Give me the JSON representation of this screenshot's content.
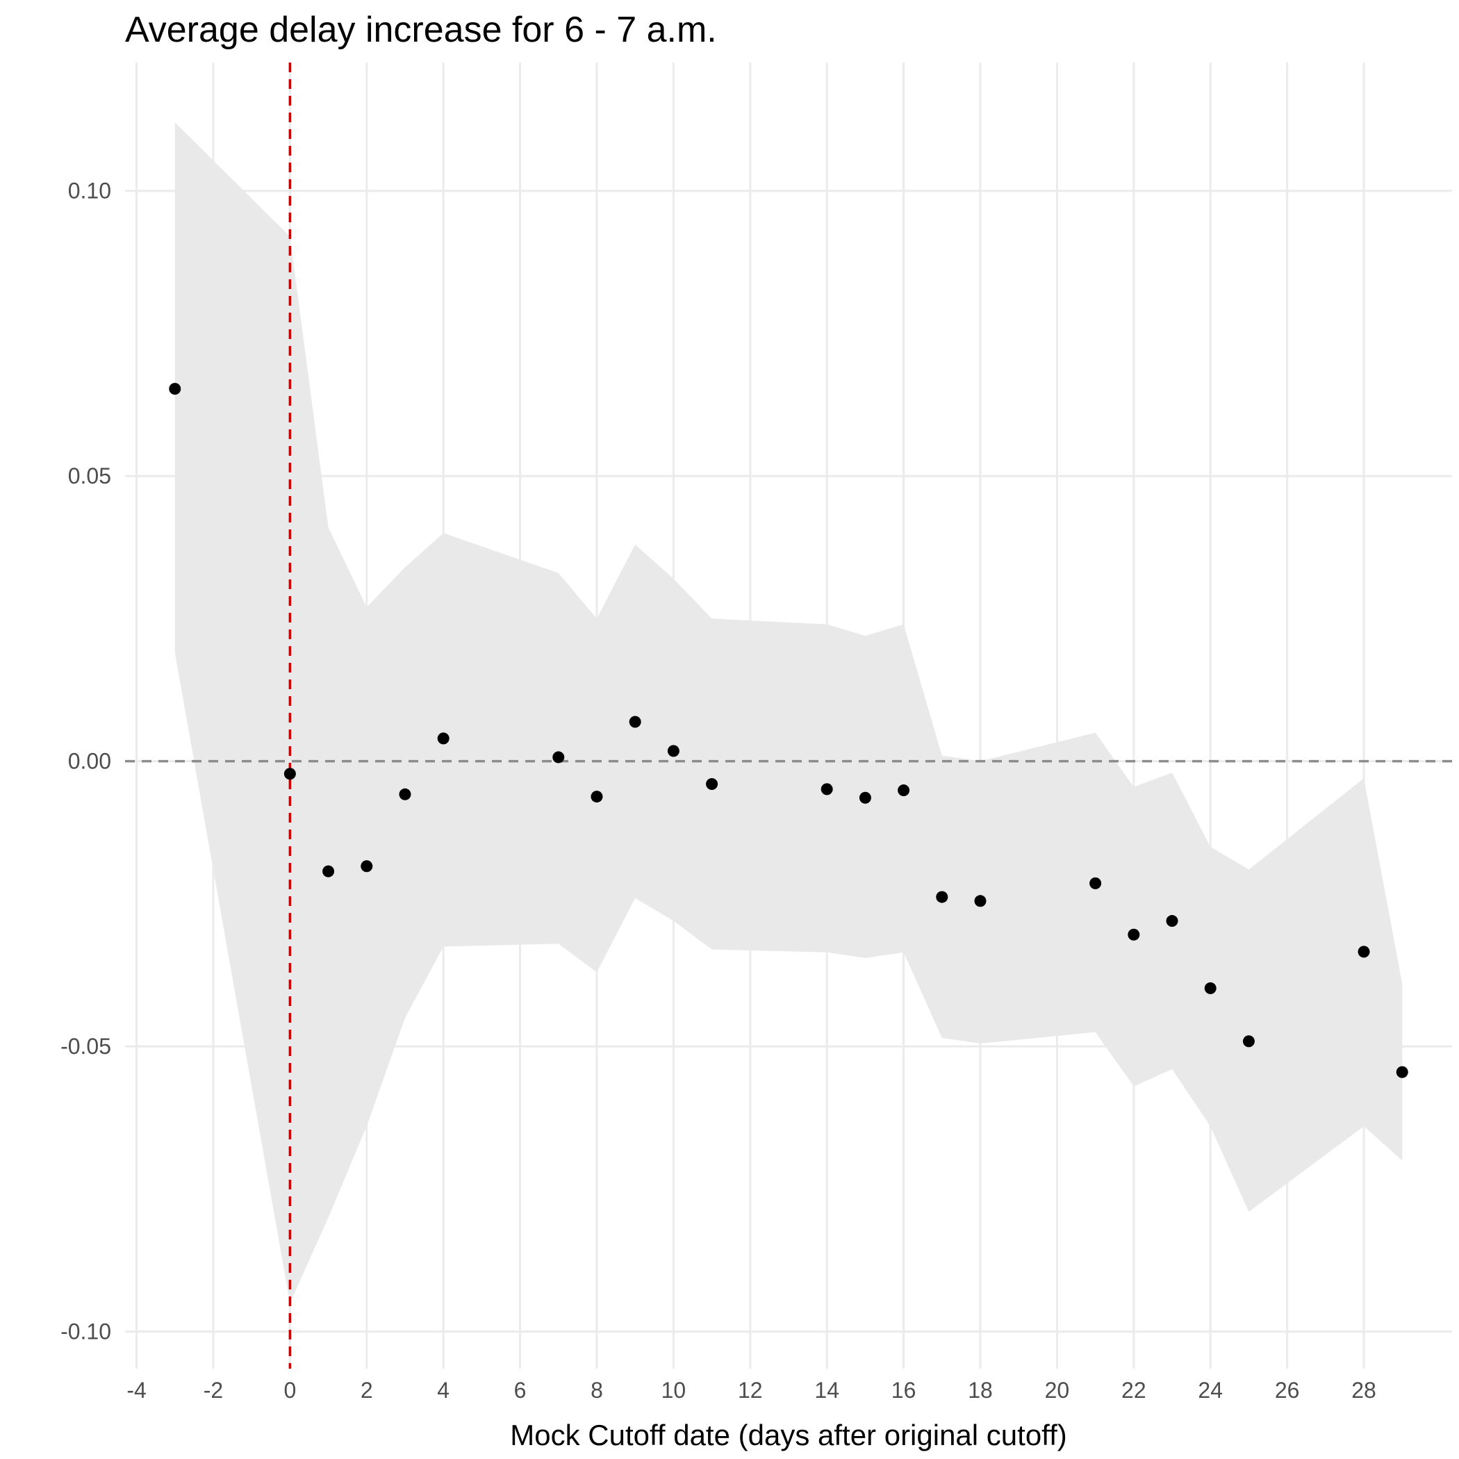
{
  "chart_data": {
    "type": "scatter",
    "title": "Average delay increase for 6 - 7 a.m.",
    "xlabel": "Mock Cutoff date (days after original cutoff)",
    "ylabel": "",
    "xlim": [
      -4.3,
      30.3
    ],
    "ylim": [
      -0.1065,
      0.1225
    ],
    "x_ticks": [
      -4,
      -2,
      0,
      2,
      4,
      6,
      8,
      10,
      12,
      14,
      16,
      18,
      20,
      22,
      24,
      26,
      28
    ],
    "x_tick_labels": [
      "-4",
      "-2",
      "0",
      "2",
      "4",
      "6",
      "8",
      "10",
      "12",
      "14",
      "16",
      "18",
      "20",
      "22",
      "24",
      "26",
      "28"
    ],
    "y_ticks": [
      -0.1,
      -0.05,
      0.0,
      0.05,
      0.1
    ],
    "y_tick_labels": [
      "-0.10",
      "-0.05",
      "0.00",
      "0.05",
      "0.10"
    ],
    "grid": true,
    "points": {
      "x": [
        -3,
        0,
        1,
        2,
        3,
        4,
        7,
        8,
        9,
        10,
        11,
        14,
        15,
        16,
        17,
        18,
        21,
        22,
        23,
        24,
        25,
        28,
        29
      ],
      "y": [
        0.0653,
        -0.0022,
        -0.0193,
        -0.0184,
        -0.0058,
        0.004,
        0.0007,
        -0.0062,
        0.0069,
        0.0018,
        -0.004,
        -0.0049,
        -0.0064,
        -0.0051,
        -0.0238,
        -0.0245,
        -0.0214,
        -0.0304,
        -0.028,
        -0.0398,
        -0.0491,
        -0.0334,
        -0.0545
      ]
    },
    "confidence_band": {
      "x": [
        -3,
        0,
        1,
        2,
        3,
        4,
        7,
        8,
        9,
        10,
        11,
        14,
        15,
        16,
        17,
        18,
        21,
        22,
        23,
        24,
        25,
        28,
        29
      ],
      "upper": [
        0.112,
        0.092,
        0.041,
        0.027,
        0.034,
        0.04,
        0.033,
        0.025,
        0.038,
        0.032,
        0.025,
        0.024,
        0.022,
        0.024,
        0.001,
        0.0,
        0.005,
        -0.0045,
        -0.002,
        -0.015,
        -0.019,
        -0.003,
        -0.039
      ],
      "lower": [
        0.019,
        -0.095,
        -0.08,
        -0.064,
        -0.045,
        -0.0325,
        -0.032,
        -0.037,
        -0.024,
        -0.028,
        -0.033,
        -0.0335,
        -0.0345,
        -0.0335,
        -0.0485,
        -0.0495,
        -0.0475,
        -0.057,
        -0.054,
        -0.064,
        -0.079,
        -0.064,
        -0.07
      ]
    },
    "reference_lines": [
      {
        "axis": "x",
        "value": 0,
        "style": "dashed",
        "color": "#cc0000"
      },
      {
        "axis": "y",
        "value": 0,
        "style": "dashed",
        "color": "#8c8c8c"
      }
    ],
    "colors": {
      "points": "#000000",
      "band": "#e9e9e9",
      "grid": "#ebebeb",
      "background": "#ffffff"
    }
  }
}
